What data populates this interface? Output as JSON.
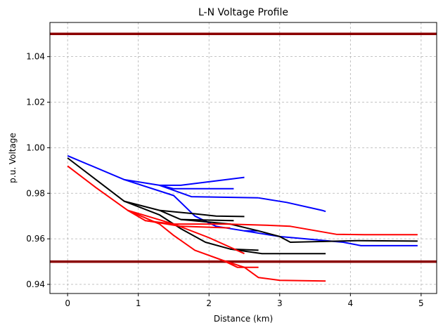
{
  "chart_data": {
    "type": "line",
    "title": "L-N Voltage Profile",
    "xlabel": "Distance (km)",
    "ylabel": "p.u. Voltage",
    "xlim": [
      -0.25,
      5.22
    ],
    "ylim": [
      0.936,
      1.055
    ],
    "xticks": [
      0,
      1,
      2,
      3,
      4,
      5
    ],
    "yticks": [
      0.94,
      0.96,
      0.98,
      1.0,
      1.02,
      1.04
    ],
    "ytick_labels": [
      "0.94",
      "0.96",
      "0.98",
      "1.00",
      "1.02",
      "1.04"
    ],
    "grid": true,
    "limits": [
      {
        "y": 1.05,
        "color": "#8b0000"
      },
      {
        "y": 0.95,
        "color": "#8b0000"
      }
    ],
    "series": [
      {
        "color": "#0000ff",
        "points": [
          [
            0.0,
            0.9965
          ],
          [
            0.8,
            0.986
          ],
          [
            1.5,
            0.979
          ],
          [
            1.8,
            0.97
          ],
          [
            2.1,
            0.9655
          ],
          [
            2.5,
            0.9635
          ],
          [
            2.7,
            0.9635
          ]
        ]
      },
      {
        "color": "#0000ff",
        "points": [
          [
            0.8,
            0.986
          ],
          [
            1.3,
            0.9835
          ],
          [
            1.75,
            0.9785
          ],
          [
            2.7,
            0.978
          ]
        ]
      },
      {
        "color": "#0000ff",
        "points": [
          [
            1.3,
            0.9835
          ],
          [
            1.6,
            0.9835
          ],
          [
            2.5,
            0.987
          ]
        ]
      },
      {
        "color": "#0000ff",
        "points": [
          [
            1.3,
            0.9835
          ],
          [
            1.5,
            0.982
          ],
          [
            2.35,
            0.982
          ]
        ]
      },
      {
        "color": "#0000ff",
        "points": [
          [
            2.7,
            0.978
          ],
          [
            3.1,
            0.976
          ],
          [
            3.6,
            0.9725
          ],
          [
            3.65,
            0.972
          ]
        ]
      },
      {
        "color": "#0000ff",
        "points": [
          [
            2.5,
            0.9635
          ],
          [
            3.0,
            0.961
          ],
          [
            3.9,
            0.9585
          ],
          [
            4.15,
            0.957
          ],
          [
            4.95,
            0.957
          ]
        ]
      },
      {
        "color": "#000000",
        "points": [
          [
            0.0,
            0.9955
          ],
          [
            0.4,
            0.986
          ],
          [
            0.8,
            0.9765
          ],
          [
            1.3,
            0.9705
          ],
          [
            1.6,
            0.9645
          ],
          [
            1.95,
            0.9585
          ],
          [
            2.3,
            0.9555
          ],
          [
            2.7,
            0.955
          ]
        ]
      },
      {
        "color": "#000000",
        "points": [
          [
            0.8,
            0.9765
          ],
          [
            1.3,
            0.9725
          ],
          [
            1.8,
            0.971
          ],
          [
            2.1,
            0.97
          ],
          [
            2.5,
            0.9698
          ]
        ]
      },
      {
        "color": "#000000",
        "points": [
          [
            1.3,
            0.9725
          ],
          [
            1.6,
            0.9685
          ],
          [
            2.35,
            0.968
          ]
        ]
      },
      {
        "color": "#000000",
        "points": [
          [
            1.6,
            0.9685
          ],
          [
            2.3,
            0.9665
          ],
          [
            2.7,
            0.9635
          ],
          [
            3.0,
            0.961
          ],
          [
            3.15,
            0.9585
          ],
          [
            4.1,
            0.9592
          ],
          [
            4.95,
            0.959
          ]
        ]
      },
      {
        "color": "#000000",
        "points": [
          [
            2.3,
            0.9555
          ],
          [
            2.75,
            0.9535
          ],
          [
            3.65,
            0.9535
          ]
        ]
      },
      {
        "color": "#ff0000",
        "points": [
          [
            0.0,
            0.992
          ],
          [
            0.4,
            0.9825
          ],
          [
            0.85,
            0.9725
          ],
          [
            1.1,
            0.968
          ],
          [
            1.5,
            0.9665
          ],
          [
            2.25,
            0.9665
          ],
          [
            2.8,
            0.966
          ],
          [
            3.15,
            0.9655
          ],
          [
            3.8,
            0.962
          ],
          [
            4.2,
            0.9618
          ],
          [
            4.95,
            0.9618
          ]
        ]
      },
      {
        "color": "#ff0000",
        "points": [
          [
            0.85,
            0.9725
          ],
          [
            1.3,
            0.9665
          ],
          [
            1.5,
            0.9615
          ],
          [
            1.8,
            0.955
          ],
          [
            2.2,
            0.9505
          ],
          [
            2.4,
            0.9475
          ],
          [
            2.7,
            0.9475
          ]
        ]
      },
      {
        "color": "#ff0000",
        "points": [
          [
            2.2,
            0.9505
          ],
          [
            2.5,
            0.9475
          ],
          [
            2.7,
            0.943
          ],
          [
            3.0,
            0.9418
          ],
          [
            3.65,
            0.9415
          ]
        ]
      },
      {
        "color": "#ff0000",
        "points": [
          [
            0.85,
            0.9725
          ],
          [
            1.5,
            0.9665
          ],
          [
            2.0,
            0.9605
          ],
          [
            2.5,
            0.9535
          ]
        ]
      },
      {
        "color": "#ff0000",
        "points": [
          [
            1.1,
            0.968
          ],
          [
            1.6,
            0.9655
          ],
          [
            2.3,
            0.9648
          ]
        ]
      }
    ]
  }
}
